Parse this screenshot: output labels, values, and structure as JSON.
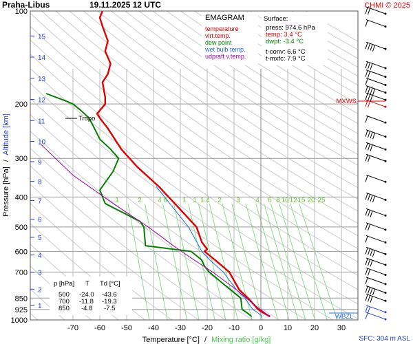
{
  "header": {
    "station": "Praha-Libus",
    "datetime": "19.11.2025 12 UTC",
    "credit": "CHMI © 2025"
  },
  "legend": {
    "title": "EMAGRAM",
    "items": [
      {
        "label": "temperature",
        "color": "#e00000"
      },
      {
        "label": "virt.temp.",
        "color": "#e00000"
      },
      {
        "label": "dew point",
        "color": "#008000"
      },
      {
        "label": "wet bulb temp.",
        "color": "#1f6fe0"
      },
      {
        "label": "udpraft v.temp.",
        "color": "#a000a0"
      }
    ]
  },
  "surface": {
    "title": "Surface:",
    "lines": [
      {
        "text": "press: 974.6 hPa",
        "color": "#000000"
      },
      {
        "text": "temp: 3.4 °C",
        "color": "#e00000"
      },
      {
        "text": "dwpt: -3.4 °C",
        "color": "#008000"
      },
      {
        "text": "",
        "color": "#000000"
      },
      {
        "text": "t-conv: 6.6 °C",
        "color": "#000000"
      },
      {
        "text": "t-mxfc: 7.9 °C",
        "color": "#000000"
      }
    ]
  },
  "table": {
    "headers": [
      "p [hPa]",
      "T",
      "Td [°C]"
    ],
    "rows": [
      [
        "500",
        "-24.0",
        "-43.6"
      ],
      [
        "700",
        "-11.8",
        "-19.3"
      ],
      [
        "850",
        "-4.8",
        "-7.5"
      ]
    ]
  },
  "axes": {
    "ylabel_pressure": "Pressure [hPa]",
    "ylabel_sep": "/",
    "ylabel_altitude": "Altitude [km]",
    "xlabel_temperature": "Temperature [°C]",
    "xlabel_sep": "/",
    "xlabel_mixing": "Mixing ratio [g/kg]",
    "sfc_label": "SFC: 304 m ASL"
  },
  "annotations": {
    "tropo": "Tropo",
    "mxws": "MXWS",
    "wbzl": "WBZL"
  },
  "chart_data": {
    "type": "line",
    "title": "EMAGRAM",
    "x_axis": {
      "label": "Temperature [°C]",
      "range": [
        -80,
        35
      ],
      "ticks": [
        -70,
        -60,
        -50,
        -40,
        -30,
        -20,
        -10,
        0,
        10,
        20,
        30
      ]
    },
    "y_axis": {
      "label": "Pressure [hPa]",
      "scale": "log",
      "range": [
        1000,
        100
      ],
      "ticks": [
        1000,
        925,
        850,
        700,
        600,
        500,
        400,
        300,
        200,
        100
      ]
    },
    "altitude_ticks_km": [
      1,
      2,
      3,
      4,
      5,
      6,
      7,
      8,
      9,
      10,
      11,
      12,
      13,
      14,
      15
    ],
    "mixing_ratio_labels": [
      "1",
      "2",
      "4",
      "6",
      "1",
      "1",
      "1.4",
      "2",
      "3",
      "4",
      "6",
      "8",
      "10",
      "12",
      "15",
      "20",
      "25"
    ],
    "grid": true,
    "series": [
      {
        "name": "temperature",
        "color": "#e00000",
        "points": [
          [
            3.4,
            975
          ],
          [
            1,
            950
          ],
          [
            -1,
            925
          ],
          [
            -4.8,
            850
          ],
          [
            -8,
            800
          ],
          [
            -11.8,
            700
          ],
          [
            -17,
            640
          ],
          [
            -21,
            600
          ],
          [
            -20,
            590
          ],
          [
            -21,
            575
          ],
          [
            -22,
            560
          ],
          [
            -24,
            500
          ],
          [
            -31,
            430
          ],
          [
            -38,
            370
          ],
          [
            -46,
            320
          ],
          [
            -52,
            280
          ],
          [
            -57,
            240
          ],
          [
            -60,
            222
          ],
          [
            -61,
            215
          ],
          [
            -58,
            200
          ],
          [
            -58,
            190
          ],
          [
            -59,
            170
          ],
          [
            -57,
            160
          ],
          [
            -56,
            148
          ],
          [
            -58,
            135
          ],
          [
            -57,
            125
          ],
          [
            -59,
            112
          ],
          [
            -60,
            105
          ],
          [
            -59,
            100
          ]
        ]
      },
      {
        "name": "dew point",
        "color": "#008000",
        "points": [
          [
            -3.4,
            975
          ],
          [
            -5,
            950
          ],
          [
            -7,
            925
          ],
          [
            -7.5,
            850
          ],
          [
            -12,
            790
          ],
          [
            -19.3,
            700
          ],
          [
            -21,
            670
          ],
          [
            -22,
            640
          ],
          [
            -26,
            600
          ],
          [
            -43,
            575
          ],
          [
            -43.6,
            500
          ],
          [
            -45,
            480
          ],
          [
            -58,
            420
          ],
          [
            -60,
            380
          ],
          [
            -55,
            330
          ],
          [
            -53,
            300
          ],
          [
            -56,
            280
          ],
          [
            -60,
            260
          ],
          [
            -62,
            240
          ],
          [
            -64,
            222
          ],
          [
            -67,
            210
          ],
          [
            -70,
            200
          ],
          [
            -73,
            195
          ],
          [
            -80,
            185
          ]
        ]
      },
      {
        "name": "wet bulb temp.",
        "color": "#1f6fe0",
        "points": [
          [
            0.5,
            975
          ],
          [
            -1,
            950
          ],
          [
            -3,
            925
          ],
          [
            -6,
            850
          ],
          [
            -9,
            800
          ],
          [
            -14,
            700
          ],
          [
            -19,
            640
          ],
          [
            -22,
            600
          ],
          [
            -27,
            500
          ],
          [
            -33,
            430
          ],
          [
            -39,
            370
          ]
        ]
      },
      {
        "name": "udpraft v.temp.",
        "color": "#a000a0",
        "points": [
          [
            3.4,
            975
          ],
          [
            -2,
            900
          ],
          [
            -9,
            800
          ],
          [
            -18,
            700
          ],
          [
            -26,
            630
          ],
          [
            -32,
            580
          ],
          [
            -42,
            500
          ],
          [
            -55,
            420
          ],
          [
            -70,
            340
          ],
          [
            -82,
            270
          ]
        ]
      }
    ]
  }
}
